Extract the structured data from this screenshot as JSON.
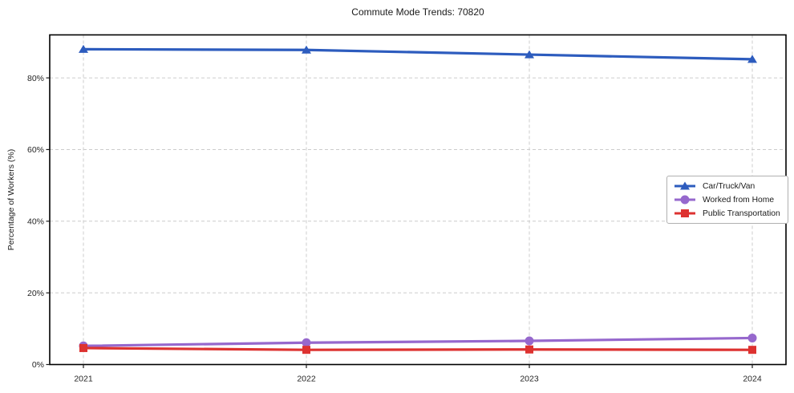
{
  "chart_data": {
    "type": "line",
    "title": "Commute Mode Trends: 70820",
    "xlabel": "",
    "ylabel": "Percentage of Workers (%)",
    "categories": [
      "2021",
      "2022",
      "2023",
      "2024"
    ],
    "series": [
      {
        "name": "Car/Truck/Van",
        "marker": "triangle",
        "color": "#2d5cbe",
        "values": [
          88.0,
          87.8,
          86.5,
          85.2
        ]
      },
      {
        "name": "Worked from Home",
        "marker": "circle",
        "color": "#9668cd",
        "values": [
          5.2,
          6.1,
          6.6,
          7.4
        ]
      },
      {
        "name": "Public Transportation",
        "marker": "square",
        "color": "#dd3230",
        "values": [
          4.6,
          4.1,
          4.2,
          4.1
        ]
      }
    ],
    "ylim": [
      0,
      92
    ],
    "yticks": {
      "values": [
        0,
        20,
        40,
        60,
        80
      ],
      "labels": [
        "0%",
        "20%",
        "40%",
        "60%",
        "80%"
      ]
    },
    "grid": true,
    "grid_style": "dashed",
    "grid_color": "#cccccc",
    "axis_border_color": "#000000",
    "background": "#ffffff",
    "legend_position": "center-right"
  }
}
